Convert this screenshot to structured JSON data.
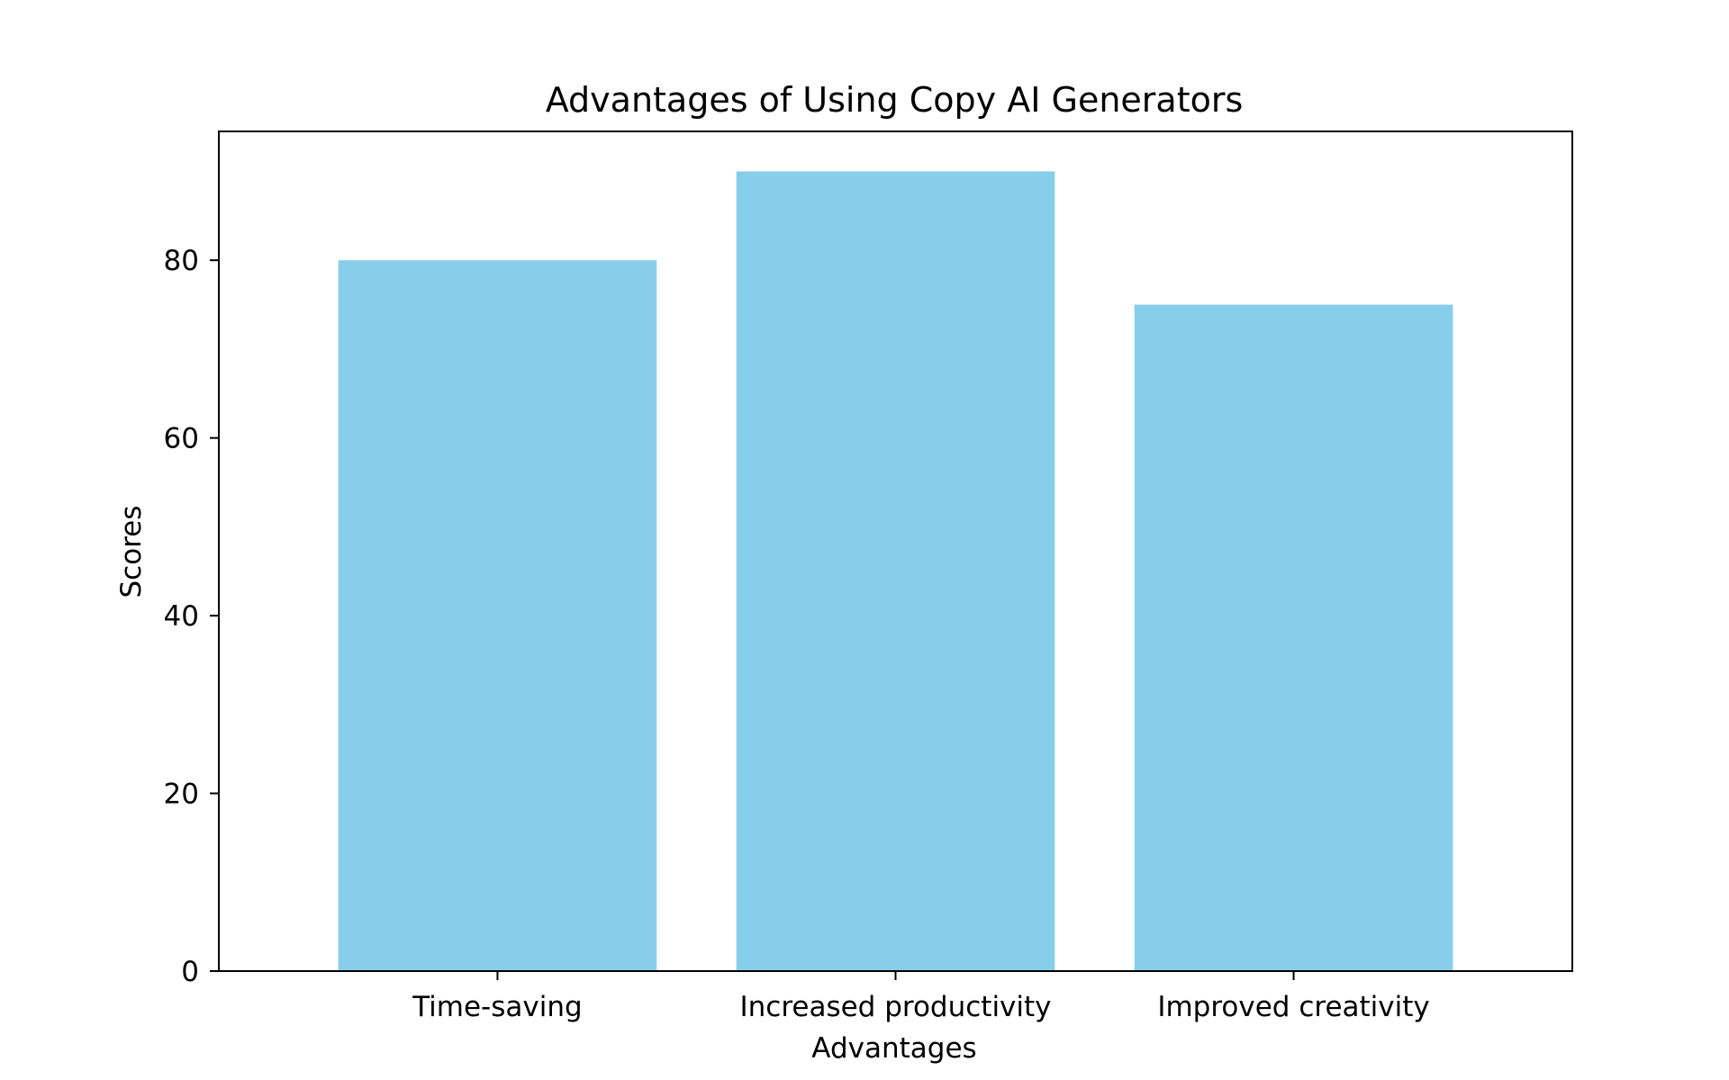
{
  "chart_data": {
    "type": "bar",
    "title": "Advantages of Using Copy AI Generators",
    "xlabel": "Advantages",
    "ylabel": "Scores",
    "categories": [
      "Time-saving",
      "Increased productivity",
      "Improved creativity"
    ],
    "values": [
      80,
      90,
      75
    ],
    "ylim": [
      0,
      94.5
    ],
    "yticks": [
      "0",
      "20",
      "40",
      "60",
      "80"
    ],
    "grid": false,
    "legend": "none",
    "colors": {
      "bar": "#87CEEB",
      "axis": "#000000",
      "background": "#ffffff"
    }
  }
}
